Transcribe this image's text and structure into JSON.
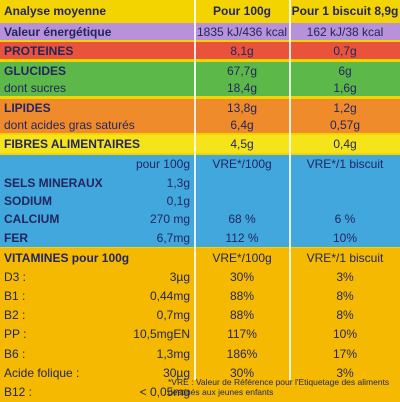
{
  "header": {
    "label": "Analyse moyenne",
    "c1": "Pour 100g",
    "c2": "Pour 1 biscuit 8,9g"
  },
  "sections": [
    {
      "rows": [
        {
          "label": "Valeur énergétique",
          "c1": "1835 kJ/436 kcal",
          "c2": "162 kJ/38 kcal"
        }
      ]
    },
    {
      "rows": [
        {
          "label": "PROTEINES",
          "c1": "8,1g",
          "c2": "0,7g"
        }
      ]
    },
    {
      "rows": [
        {
          "label": "GLUCIDES",
          "c1": "67,7g",
          "c2": "6g"
        },
        {
          "label": "dont sucres",
          "c1": "18,4g",
          "c2": "1,6g"
        }
      ]
    },
    {
      "rows": [
        {
          "label": "LIPIDES",
          "c1": "13,8g",
          "c2": "1,2g"
        },
        {
          "label": "dont acides gras saturés",
          "c1": "6,4g",
          "c2": "0,57g"
        }
      ]
    },
    {
      "rows": [
        {
          "label": "FIBRES ALIMENTAIRES",
          "c1": "4,5g",
          "c2": "0,4g"
        }
      ]
    },
    {
      "rows": [
        {
          "amount": "pour 100g",
          "c1": "VRE*/100g",
          "c2": "VRE*/1 biscuit"
        },
        {
          "label": "SELS MINERAUX",
          "amount": "1,3g"
        },
        {
          "label": "SODIUM",
          "amount": "0,1g"
        },
        {
          "label": "CALCIUM",
          "amount": "270 mg",
          "c1": "68 %",
          "c2": "6 %"
        },
        {
          "label": "FER",
          "amount": "6,7mg",
          "c1": "112 %",
          "c2": "10%"
        }
      ]
    },
    {
      "rows": [
        {
          "label": "VITAMINES pour 100g",
          "c1": "VRE*/100g",
          "c2": "VRE*/1 biscuit"
        },
        {
          "label": "D3 :",
          "amount": "3µg",
          "c1": "30%",
          "c2": "3%"
        },
        {
          "label": "B1 :",
          "amount": "0,44mg",
          "c1": "88%",
          "c2": "8%"
        },
        {
          "label": "B2 :",
          "amount": "0,7mg",
          "c1": "88%",
          "c2": "8%"
        },
        {
          "label": "PP :",
          "amount": "10,5mgEN",
          "c1": "117%",
          "c2": "10%"
        },
        {
          "label": "B6 :",
          "amount": "1,3mg",
          "c1": "186%",
          "c2": "17%"
        },
        {
          "label": "Acide folique :",
          "amount": "30µg",
          "c1": "30%",
          "c2": "3%"
        },
        {
          "label": "B12 :",
          "amount": "< 0,05mg"
        }
      ]
    }
  ],
  "footnote": "*VRE : Valeur de Référence pour l'Etiquetage des aliments destinés aux jeunes enfants"
}
